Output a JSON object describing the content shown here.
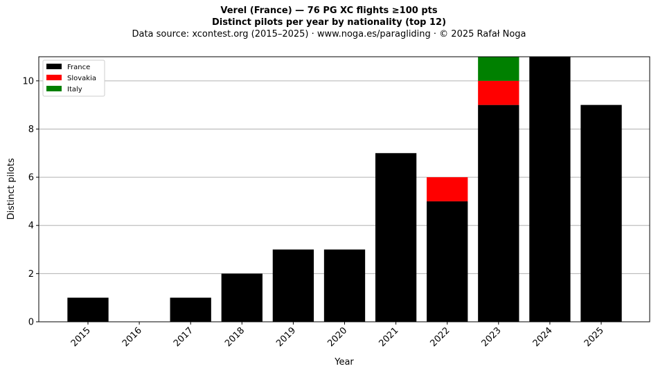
{
  "chart_data": {
    "type": "bar",
    "stacked": true,
    "title": "Verel (France)  —  76 PG XC flights ≥100 pts",
    "subtitle": "Distinct pilots per year by nationality (top 12)",
    "source_line": "Data source: xcontest.org (2015–2025)  ·  www.noga.es/paragliding  ·  © 2025 Rafał Noga",
    "xlabel": "Year",
    "ylabel": "Distinct pilots",
    "categories": [
      "2015",
      "2016",
      "2017",
      "2018",
      "2019",
      "2020",
      "2021",
      "2022",
      "2023",
      "2024",
      "2025"
    ],
    "series": [
      {
        "name": "France",
        "color": "#000000",
        "values": [
          1,
          0,
          1,
          2,
          3,
          3,
          7,
          5,
          9,
          11,
          9
        ]
      },
      {
        "name": "Slovakia",
        "color": "#ff0000",
        "values": [
          0,
          0,
          0,
          0,
          0,
          0,
          0,
          1,
          1,
          0,
          0
        ]
      },
      {
        "name": "Italy",
        "color": "#008000",
        "values": [
          0,
          0,
          0,
          0,
          0,
          0,
          0,
          0,
          1,
          0,
          0
        ]
      }
    ],
    "ylim": [
      0,
      11
    ],
    "yticks": [
      0,
      2,
      4,
      6,
      8,
      10
    ],
    "grid": "y",
    "legend": "top-left"
  }
}
